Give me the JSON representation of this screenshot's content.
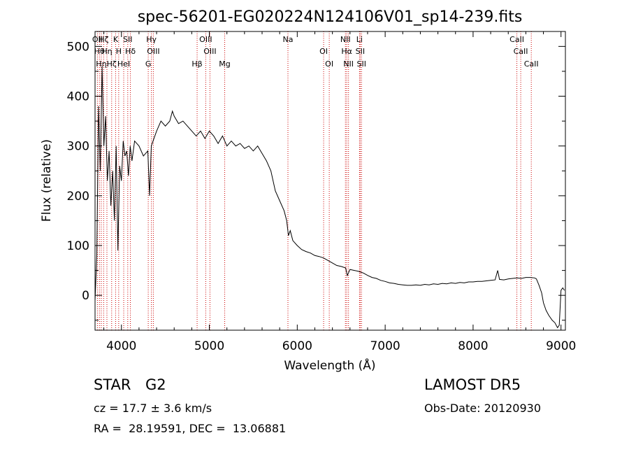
{
  "chart_data": {
    "type": "line",
    "title": "spec-56201-EG020224N124106V01_sp14-239.fits",
    "xlabel": "Wavelength (Å)",
    "ylabel": "Flux (relative)",
    "xlim": [
      3700,
      9050
    ],
    "ylim": [
      -70,
      530
    ],
    "x_ticks": [
      4000,
      5000,
      6000,
      7000,
      8000,
      9000
    ],
    "y_ticks": [
      0,
      100,
      200,
      300,
      400,
      500
    ],
    "grid": false,
    "legend": "none",
    "line_color": "#000000",
    "marker_color": "#cc0000",
    "series": [
      {
        "x": [
          3700,
          3720,
          3740,
          3760,
          3780,
          3800,
          3820,
          3840,
          3860,
          3880,
          3900,
          3920,
          3940,
          3960,
          3980,
          4000,
          4020,
          4040,
          4060,
          4080,
          4100,
          4120,
          4150,
          4200,
          4250,
          4300,
          4320,
          4340,
          4360,
          4400,
          4450,
          4500,
          4550,
          4580,
          4600,
          4650,
          4700,
          4750,
          4800,
          4850,
          4900,
          4950,
          5000,
          5050,
          5100,
          5150,
          5200,
          5250,
          5300,
          5350,
          5400,
          5450,
          5500,
          5550,
          5600,
          5650,
          5700,
          5750,
          5800,
          5850,
          5880,
          5900,
          5920,
          5950,
          6000,
          6050,
          6100,
          6150,
          6200,
          6250,
          6300,
          6350,
          6400,
          6450,
          6500,
          6550,
          6570,
          6600,
          6650,
          6700,
          6750,
          6800,
          6850,
          6900,
          6950,
          7000,
          7050,
          7100,
          7150,
          7200,
          7250,
          7300,
          7350,
          7400,
          7450,
          7500,
          7550,
          7600,
          7650,
          7700,
          7750,
          7800,
          7850,
          7900,
          7950,
          8000,
          8050,
          8100,
          8150,
          8200,
          8250,
          8280,
          8300,
          8350,
          8400,
          8450,
          8500,
          8550,
          8600,
          8650,
          8700,
          8720,
          8750,
          8780,
          8800,
          8830,
          8860,
          8900,
          8930,
          8960,
          8980,
          9000,
          9020,
          9040
        ],
        "y": [
          -10,
          80,
          380,
          250,
          460,
          300,
          360,
          230,
          290,
          180,
          250,
          150,
          300,
          90,
          260,
          230,
          310,
          280,
          290,
          240,
          300,
          270,
          310,
          300,
          280,
          290,
          200,
          300,
          310,
          330,
          350,
          340,
          350,
          370,
          360,
          345,
          350,
          340,
          330,
          320,
          330,
          315,
          330,
          320,
          305,
          320,
          300,
          310,
          300,
          305,
          295,
          300,
          290,
          300,
          285,
          270,
          250,
          210,
          190,
          170,
          150,
          120,
          130,
          110,
          100,
          92,
          88,
          85,
          80,
          78,
          75,
          70,
          65,
          60,
          58,
          55,
          40,
          52,
          50,
          48,
          45,
          40,
          36,
          34,
          30,
          28,
          25,
          24,
          22,
          21,
          20,
          20,
          21,
          20,
          22,
          21,
          23,
          22,
          24,
          23,
          25,
          24,
          26,
          25,
          27,
          27,
          28,
          28,
          29,
          30,
          31,
          50,
          32,
          31,
          33,
          34,
          35,
          34,
          36,
          36,
          35,
          33,
          20,
          5,
          -15,
          -30,
          -40,
          -50,
          -55,
          -65,
          -60,
          10,
          15,
          10
        ]
      }
    ],
    "line_markers": [
      {
        "x": 3727,
        "label": "OII"
      },
      {
        "x": 3750,
        "label": "Hθ"
      },
      {
        "x": 3771,
        "label": "Hη"
      },
      {
        "x": 3798,
        "label": "Hζ"
      },
      {
        "x": 3835,
        "label": "Hη"
      },
      {
        "x": 3889,
        "label": "Hζ"
      },
      {
        "x": 3934,
        "label": "K"
      },
      {
        "x": 3969,
        "label": "H"
      },
      {
        "x": 4026,
        "label": "HeI"
      },
      {
        "x": 4072,
        "label": "SII"
      },
      {
        "x": 4102,
        "label": "Hδ"
      },
      {
        "x": 4305,
        "label": "G"
      },
      {
        "x": 4341,
        "label": "Hγ"
      },
      {
        "x": 4363,
        "label": "OIII"
      },
      {
        "x": 4861,
        "label": "Hβ"
      },
      {
        "x": 4959,
        "label": "OIII"
      },
      {
        "x": 5007,
        "label": "OIII"
      },
      {
        "x": 5175,
        "label": "Mg"
      },
      {
        "x": 5894,
        "label": "Na"
      },
      {
        "x": 6300,
        "label": "OI"
      },
      {
        "x": 6364,
        "label": "OI"
      },
      {
        "x": 6548,
        "label": "NII"
      },
      {
        "x": 6563,
        "label": "Hα"
      },
      {
        "x": 6583,
        "label": "NII"
      },
      {
        "x": 6708,
        "label": "Li"
      },
      {
        "x": 6716,
        "label": "SII"
      },
      {
        "x": 6731,
        "label": "SII"
      },
      {
        "x": 8498,
        "label": "CaII"
      },
      {
        "x": 8542,
        "label": "CaII"
      },
      {
        "x": 8662,
        "label": "CaII"
      }
    ]
  },
  "info": {
    "object_type": "STAR",
    "object_class": "G2",
    "survey": "LAMOST DR5",
    "redshift": "cz = 17.7 ± 3.6 km/s",
    "obs_date": "Obs-Date: 20120930",
    "coordinates": "RA =  28.19591, DEC =  13.06881"
  }
}
